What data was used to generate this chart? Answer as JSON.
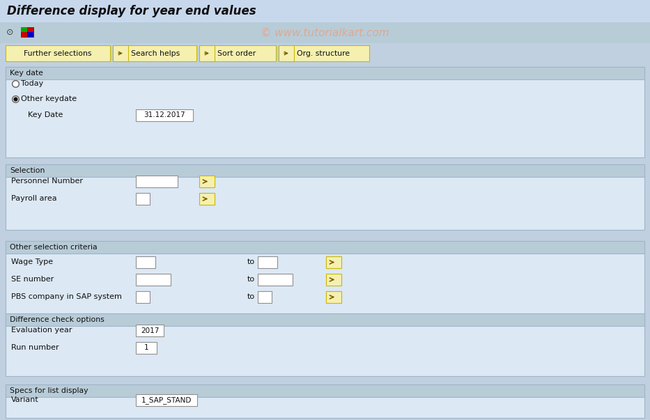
{
  "title": "Difference display for year end values",
  "watermark": "© www.tutorialkart.com",
  "bg_color": "#c0d0e0",
  "title_bar_bg": "#c8d8e8",
  "toolbar_bg": "#b8ccd8",
  "nav_bar_bg": "#c8d4e0",
  "section_body_bg": "#dce8f4",
  "section_hdr_bg": "#b8ccd8",
  "section_border": "#a0b4c8",
  "btn_yellow_bg": "#f5f0b0",
  "btn_yellow_border": "#c8b800",
  "input_bg": "#ffffff",
  "input_border": "#909090",
  "nav_buttons": [
    "Further selections",
    "Search helps",
    "Sort order",
    "Org. structure"
  ],
  "fig_w": 9.33,
  "fig_h": 6.03,
  "dpi": 100
}
